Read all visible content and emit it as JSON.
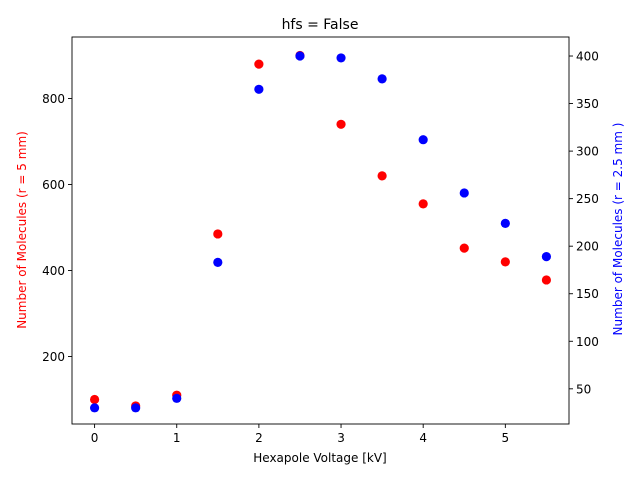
{
  "chart_data": {
    "type": "scatter",
    "title": "hfs = False",
    "xlabel": "Hexapole Voltage [kV]",
    "xlim": [
      -0.275,
      5.775
    ],
    "xticks": [
      0,
      1,
      2,
      3,
      4,
      5
    ],
    "grid": false,
    "legend": "none",
    "y_left": {
      "label": "Number of Molecules (r = 5 mm)",
      "color": "#ff0000",
      "ylim": [
        43,
        943
      ],
      "ticks": [
        200,
        400,
        600,
        800
      ]
    },
    "y_right": {
      "label": "Number of Molecules (r = 2.5 mm )",
      "color": "#0000ff",
      "ylim": [
        13,
        420
      ],
      "ticks": [
        50,
        100,
        150,
        200,
        250,
        300,
        350,
        400
      ]
    },
    "series": [
      {
        "color": "#ff0000",
        "axis": "left",
        "x": [
          0,
          0.5,
          1,
          1.5,
          2,
          2.5,
          3,
          3.5,
          4,
          4.5,
          5,
          5.5
        ],
        "y": [
          100,
          85,
          110,
          485,
          880,
          900,
          740,
          620,
          555,
          452,
          420,
          378
        ]
      },
      {
        "color": "#0000ff",
        "axis": "right",
        "x": [
          0,
          0.5,
          1,
          1.5,
          2,
          2.5,
          3,
          3.5,
          4,
          4.5,
          5,
          5.5
        ],
        "y": [
          30,
          30,
          40,
          183,
          365,
          400,
          398,
          376,
          312,
          256,
          224,
          189
        ]
      }
    ]
  }
}
